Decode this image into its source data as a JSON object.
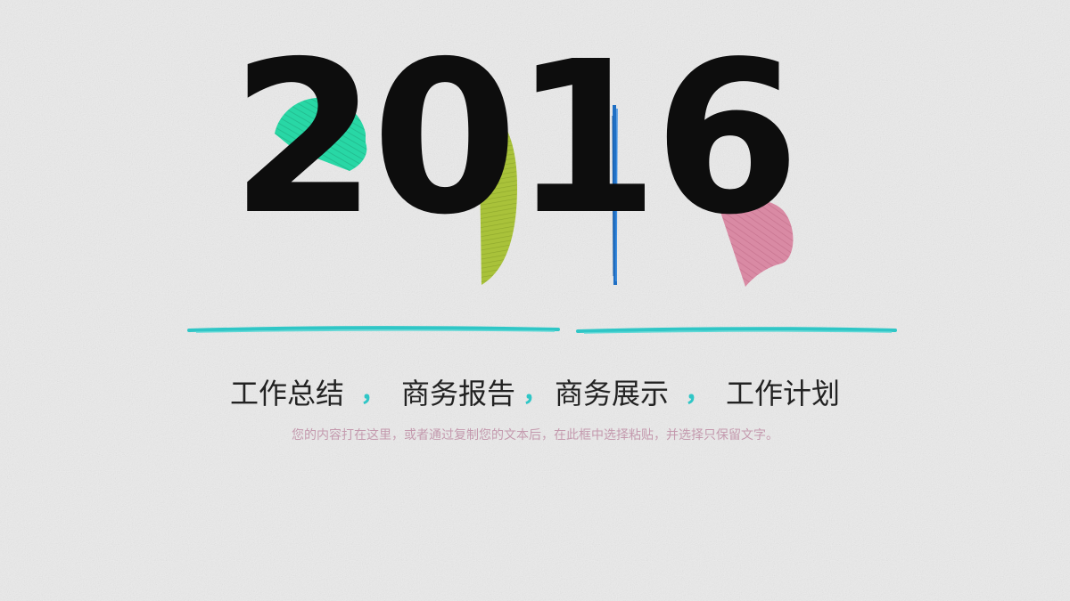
{
  "slide": {
    "year": "2016",
    "topics": [
      "工作总结",
      "商务报告",
      "商务展示",
      "工作计划"
    ],
    "separator": "，",
    "description": "您的内容打在这里，或者通过复制您的文本后，在此框中选择粘贴，并选择只保留文字。"
  },
  "colors": {
    "background": "#ebebeb",
    "year_text": "#0d0d0d",
    "green_shape": "#1ed6a2",
    "olive_shape": "#a9c23a",
    "blue_line": "#1f6fc4",
    "pink_shape": "#d98aa4",
    "teal_underline": "#2fc6c6",
    "description_text": "#c49aae"
  }
}
